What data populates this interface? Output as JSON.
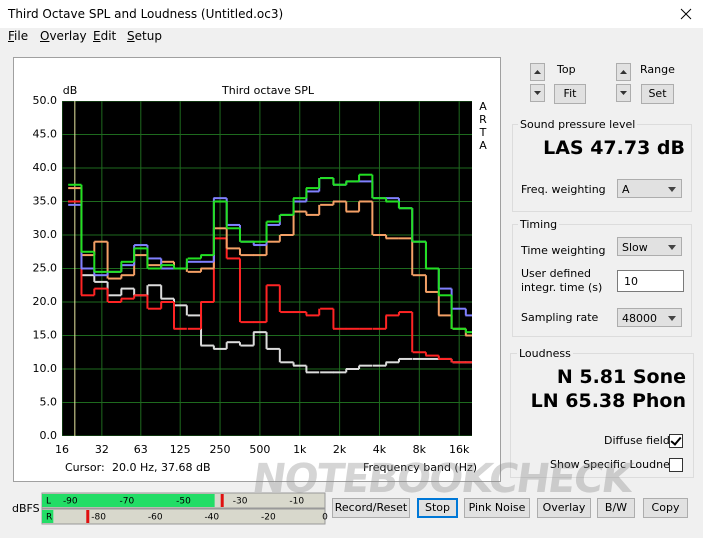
{
  "window": {
    "title": "Third Octave SPL and Loudness (Untitled.oc3)"
  },
  "menu": [
    "File",
    "Overlay",
    "Edit",
    "Setup"
  ],
  "chart_data": {
    "type": "step",
    "title": "Third octave SPL",
    "y_label": "dB",
    "x_label": "Frequency band (Hz)",
    "side_label": [
      "A",
      "R",
      "T",
      "A"
    ],
    "cursor": {
      "label": "Cursor:",
      "text": "20.0 Hz, 37.68 dB"
    },
    "log_x": true,
    "grid": true,
    "background": "#000000",
    "grid_color": "#1e6a1e",
    "x": [
      20,
      25,
      31.5,
      40,
      50,
      63,
      80,
      100,
      125,
      160,
      200,
      250,
      315,
      400,
      500,
      630,
      800,
      1000,
      1250,
      1600,
      2000,
      2500,
      3150,
      4000,
      5000,
      6300,
      8000,
      10000,
      12500,
      16000,
      20000
    ],
    "xlim": [
      16,
      20000
    ],
    "xticks": [
      16,
      32,
      63,
      125,
      250,
      500,
      {
        "value": 1000,
        "label": "1k"
      },
      {
        "value": 2000,
        "label": "2k"
      },
      {
        "value": 4000,
        "label": "4k"
      },
      {
        "value": 8000,
        "label": "8k"
      },
      {
        "value": 16000,
        "label": "16k"
      }
    ],
    "ylim": [
      0,
      50
    ],
    "yticks": [
      {
        "value": 0,
        "label": "0.0"
      },
      {
        "value": 5,
        "label": "5.0"
      },
      {
        "value": 10,
        "label": "10.0"
      },
      {
        "value": 15,
        "label": "15.0"
      },
      {
        "value": 20,
        "label": "20.0"
      },
      {
        "value": 25,
        "label": "25.0"
      },
      {
        "value": 30,
        "label": "30.0"
      },
      {
        "value": 35,
        "label": "35.0"
      },
      {
        "value": 40,
        "label": "40.0"
      },
      {
        "value": 45,
        "label": "45.0"
      },
      {
        "value": 50,
        "label": "50.0"
      }
    ],
    "series": [
      {
        "color": "#dcdcdc",
        "values": [
          35,
          24,
          23,
          21,
          22,
          21,
          22.5,
          20.5,
          19.5,
          18,
          13.5,
          13,
          14,
          13.5,
          15.5,
          13,
          11,
          10.5,
          9.5,
          9.5,
          9.5,
          10,
          10.5,
          10.5,
          11,
          11.5,
          11.5,
          11.5,
          11.5,
          11,
          11
        ]
      },
      {
        "color": "#ff2424",
        "values": [
          35,
          21,
          22,
          20,
          20.5,
          21,
          19,
          20,
          16,
          16,
          20,
          29.5,
          26.5,
          17,
          17,
          22.5,
          18.5,
          18.5,
          18,
          19,
          16,
          16,
          16,
          16,
          18,
          18.5,
          12.5,
          12,
          11.5,
          11,
          11
        ]
      },
      {
        "color": "#f4a066",
        "values": [
          37,
          27,
          29,
          23.5,
          24,
          27,
          25.5,
          26,
          25,
          24.5,
          25,
          31,
          28,
          27,
          27,
          29,
          30,
          33.5,
          33,
          34.5,
          35,
          33.5,
          35,
          30,
          29.5,
          29.5,
          24,
          21.5,
          18,
          16,
          15
        ]
      },
      {
        "color": "#8080ff",
        "values": [
          34.5,
          25,
          24,
          24.5,
          25.5,
          28.5,
          26.5,
          25,
          25,
          26,
          26,
          35.5,
          31.5,
          29,
          28.5,
          31.5,
          33,
          35,
          36.5,
          38.5,
          37.5,
          38,
          38,
          35.5,
          35.5,
          34,
          29,
          25,
          22,
          19,
          18
        ]
      },
      {
        "color": "#22e022",
        "values": [
          37.5,
          27.5,
          24.5,
          24.5,
          26,
          28,
          25,
          25.5,
          25,
          26.5,
          27,
          35,
          31,
          29,
          29,
          32,
          33,
          35.5,
          37,
          38.5,
          37.5,
          38,
          39,
          35.5,
          35,
          34,
          29,
          25,
          21,
          16,
          15.5
        ]
      }
    ]
  },
  "controls": {
    "top": {
      "label": "Top",
      "button": "Fit"
    },
    "range": {
      "label": "Range",
      "button": "Set"
    },
    "spl": {
      "group": "Sound pressure level",
      "reading": "LAS 47.73 dB",
      "freq_label": "Freq. weighting",
      "freq_value": "A"
    },
    "timing": {
      "group": "Timing",
      "time_label": "Time weighting",
      "time_value": "Slow",
      "integr_label_1": "User defined",
      "integr_label_2": "integr. time (s)",
      "integr_value": "10",
      "rate_label": "Sampling rate",
      "rate_value": "48000"
    },
    "loudness": {
      "group": "Loudness",
      "sone": "N 5.81 Sone",
      "phon": "LN 65.38 Phon",
      "diffuse_label": "Diffuse field",
      "diffuse_checked": true,
      "specific_label": "Show Specific Loudness",
      "specific_checked": false
    }
  },
  "meter": {
    "label": "dBFS",
    "xlim": [
      -100,
      0
    ],
    "channels": [
      {
        "label": "L",
        "level": -39,
        "peak": -36.5,
        "scale": [
          -90,
          -70,
          -50,
          -30,
          -10
        ]
      },
      {
        "label": "R",
        "level": -96,
        "peak": -84,
        "scale": [
          -80,
          -60,
          -40,
          -20,
          0
        ]
      }
    ]
  },
  "buttons": [
    "Record/Reset",
    "Stop",
    "Pink Noise",
    "Overlay",
    "B/W",
    "Copy"
  ],
  "watermark": "NOTEBOOKCHECK"
}
